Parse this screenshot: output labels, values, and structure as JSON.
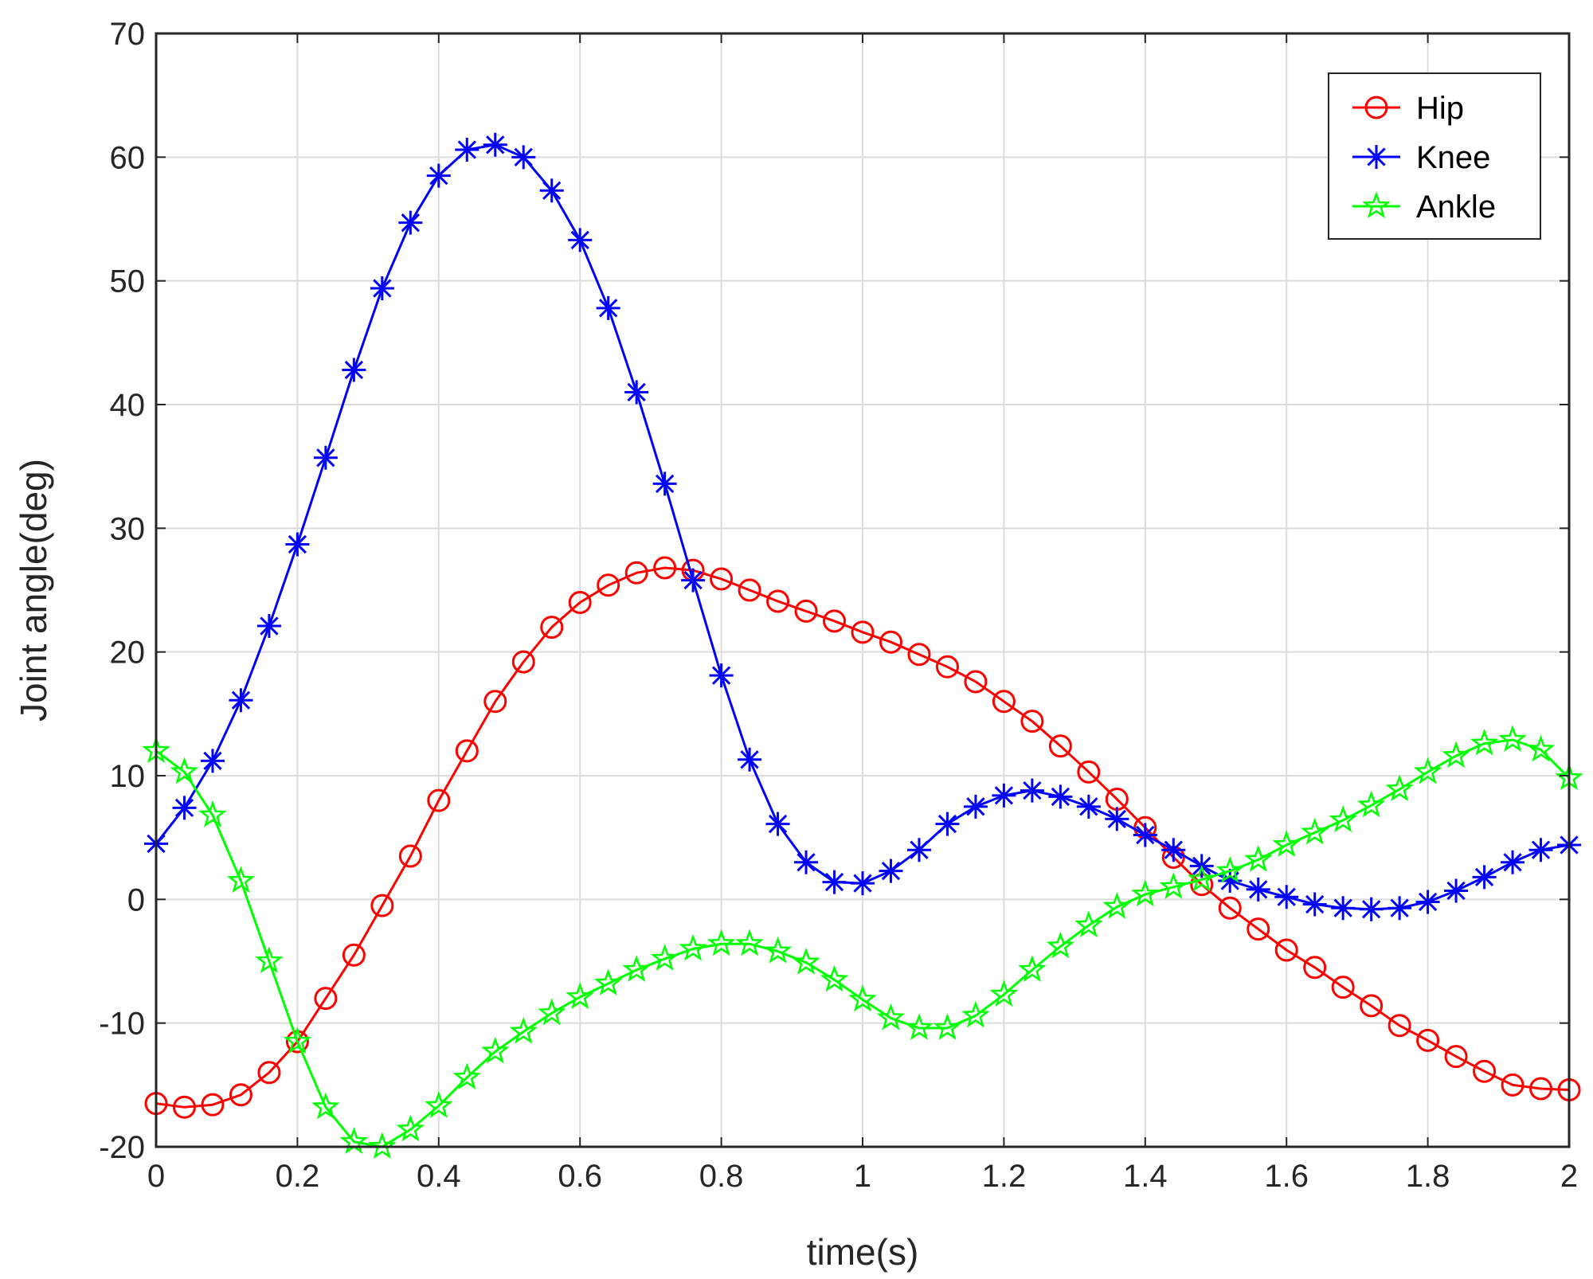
{
  "chart_data": {
    "type": "line",
    "xlabel": "time(s)",
    "ylabel": "Joint angle(deg)",
    "xlim": [
      0,
      2
    ],
    "ylim": [
      -20,
      70
    ],
    "xticks": [
      0,
      0.2,
      0.4,
      0.6,
      0.8,
      1,
      1.2,
      1.4,
      1.6,
      1.8,
      2
    ],
    "xtick_labels": [
      "0",
      "0.2",
      "0.4",
      "0.6",
      "0.8",
      "1",
      "1.2",
      "1.4",
      "1.6",
      "1.8",
      "2"
    ],
    "yticks": [
      -20,
      -10,
      0,
      10,
      20,
      30,
      40,
      50,
      60,
      70
    ],
    "ytick_labels": [
      "-20",
      "-10",
      "0",
      "10",
      "20",
      "30",
      "40",
      "50",
      "60",
      "70"
    ],
    "grid": true,
    "legend_position": "top-right",
    "x": [
      0,
      0.04,
      0.08,
      0.12,
      0.16,
      0.2,
      0.24,
      0.28,
      0.32,
      0.36,
      0.4,
      0.44,
      0.48,
      0.52,
      0.56,
      0.6,
      0.64,
      0.68,
      0.72,
      0.76,
      0.8,
      0.84,
      0.88,
      0.92,
      0.96,
      1.0,
      1.04,
      1.08,
      1.12,
      1.16,
      1.2,
      1.24,
      1.28,
      1.32,
      1.36,
      1.4,
      1.44,
      1.48,
      1.52,
      1.56,
      1.6,
      1.64,
      1.68,
      1.72,
      1.76,
      1.8,
      1.84,
      1.88,
      1.92,
      1.96,
      2.0
    ],
    "series": [
      {
        "name": "Hip",
        "color": "#ff0000",
        "marker": "circle",
        "values": [
          -16.5,
          -16.8,
          -16.6,
          -15.8,
          -14.0,
          -11.5,
          -8.0,
          -4.5,
          -0.5,
          3.5,
          8.0,
          12.0,
          16.0,
          19.2,
          22.0,
          24.0,
          25.4,
          26.4,
          26.8,
          26.6,
          25.9,
          25.0,
          24.1,
          23.3,
          22.5,
          21.6,
          20.8,
          19.8,
          18.8,
          17.6,
          16.0,
          14.4,
          12.4,
          10.3,
          8.1,
          5.8,
          3.4,
          1.2,
          -0.7,
          -2.4,
          -4.1,
          -5.5,
          -7.1,
          -8.6,
          -10.2,
          -11.4,
          -12.7,
          -13.9,
          -15.0,
          -15.3,
          -15.4
        ]
      },
      {
        "name": "Knee",
        "color": "#0000ff",
        "marker": "asterisk",
        "values": [
          4.5,
          7.4,
          11.2,
          16.1,
          22.1,
          28.7,
          35.7,
          42.8,
          49.4,
          54.7,
          58.5,
          60.6,
          61.0,
          60.0,
          57.3,
          53.3,
          47.8,
          41.0,
          33.6,
          25.8,
          18.1,
          11.3,
          6.1,
          3.0,
          1.4,
          1.3,
          2.3,
          4.0,
          6.1,
          7.5,
          8.4,
          8.8,
          8.3,
          7.5,
          6.5,
          5.2,
          4.0,
          2.7,
          1.5,
          0.8,
          0.2,
          -0.4,
          -0.7,
          -0.8,
          -0.7,
          -0.2,
          0.7,
          1.8,
          3.0,
          4.0,
          4.4
        ]
      },
      {
        "name": "Ankle",
        "color": "#00ff00",
        "marker": "pentagram",
        "values": [
          12.0,
          10.3,
          6.8,
          1.5,
          -5.0,
          -11.5,
          -16.8,
          -19.6,
          -20.0,
          -18.6,
          -16.7,
          -14.4,
          -12.3,
          -10.7,
          -9.2,
          -7.9,
          -6.8,
          -5.7,
          -4.8,
          -4.0,
          -3.6,
          -3.6,
          -4.2,
          -5.1,
          -6.5,
          -8.1,
          -9.6,
          -10.4,
          -10.4,
          -9.4,
          -7.7,
          -5.7,
          -3.8,
          -2.1,
          -0.6,
          0.4,
          1.0,
          1.6,
          2.3,
          3.2,
          4.4,
          5.4,
          6.4,
          7.6,
          8.9,
          10.3,
          11.6,
          12.6,
          12.9,
          12.1,
          9.8
        ]
      }
    ]
  }
}
